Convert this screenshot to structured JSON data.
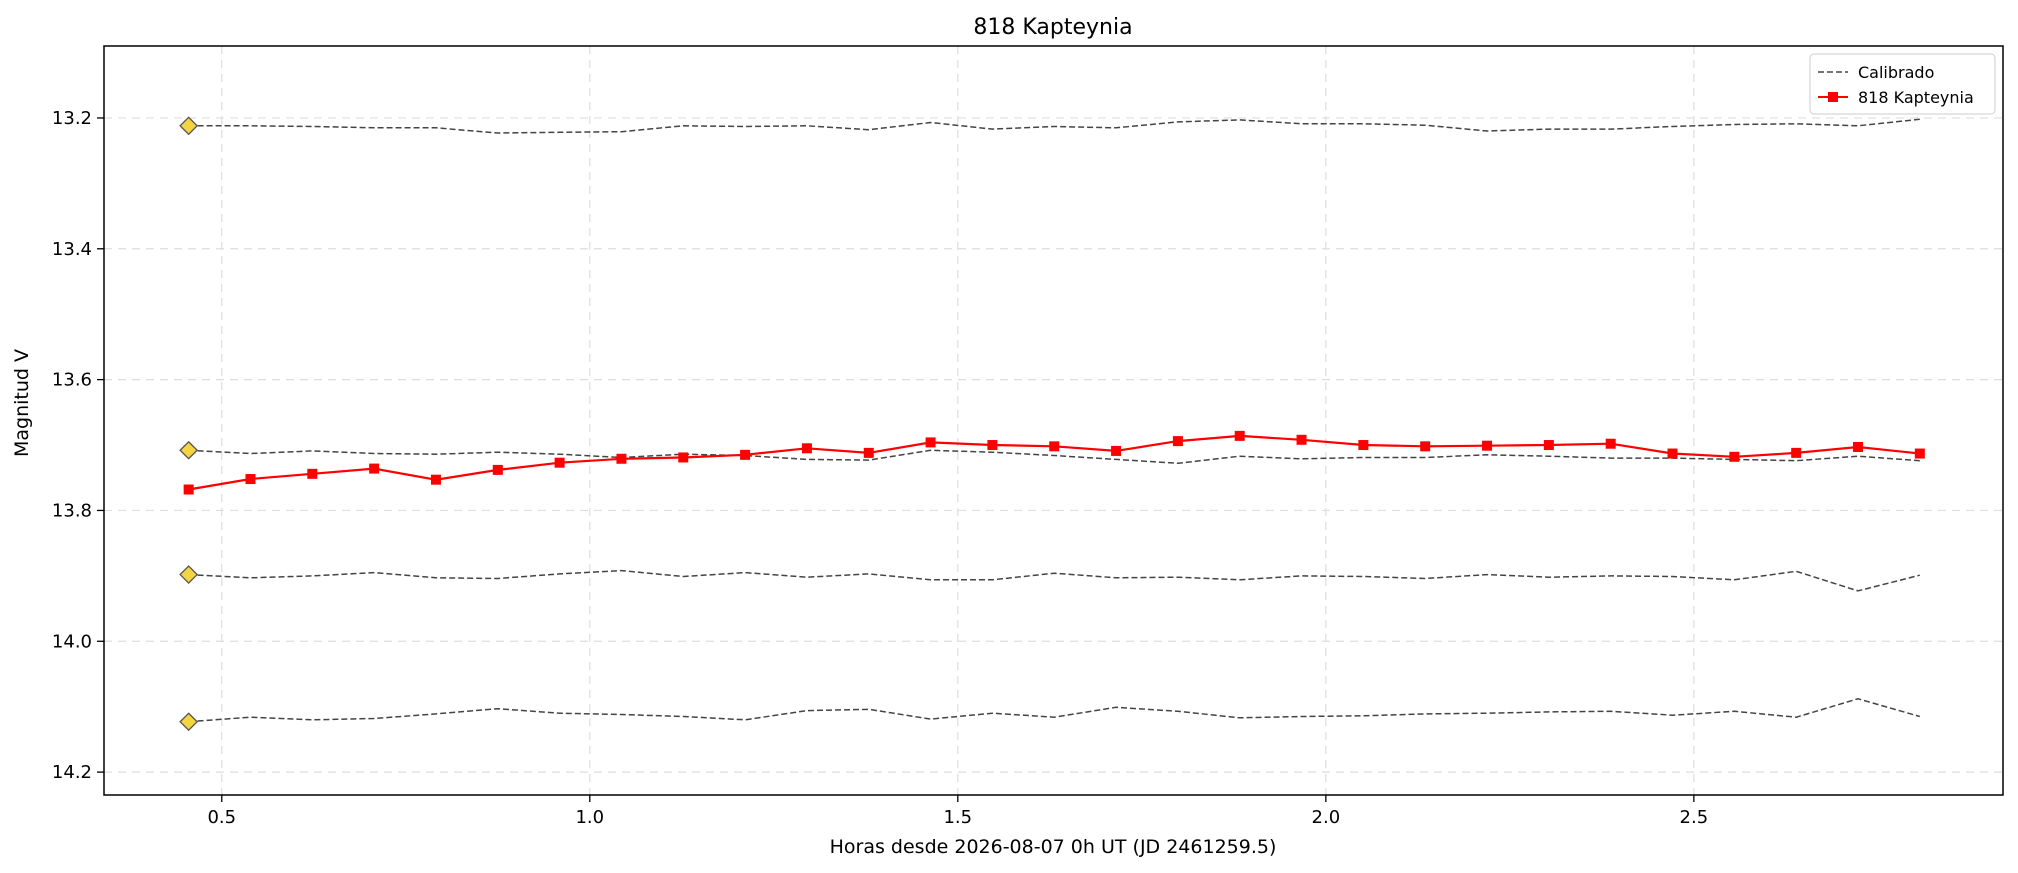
{
  "chart_data": {
    "type": "line",
    "title": "818 Kapteynia",
    "xlabel": "Horas desde 2026-08-07 0h UT (JD 2461259.5)",
    "ylabel": "Magnitud V",
    "xlim": [
      0.34,
      2.92
    ],
    "ylim": [
      14.235,
      13.09
    ],
    "y_inverted": true,
    "grid": true,
    "legend_position": "top-right",
    "x_ticks": [
      0.5,
      1.0,
      1.5,
      2.0,
      2.5
    ],
    "x_tick_labels": [
      "0.5",
      "1.0",
      "1.5",
      "2.0",
      "2.5"
    ],
    "y_ticks": [
      13.2,
      13.4,
      13.6,
      13.8,
      14.0,
      14.2
    ],
    "y_tick_labels": [
      "13.2",
      "13.4",
      "13.6",
      "13.8",
      "14.0",
      "14.2"
    ],
    "x": [
      0.455,
      0.539,
      0.623,
      0.707,
      0.791,
      0.875,
      0.959,
      1.043,
      1.127,
      1.211,
      1.295,
      1.379,
      1.463,
      1.547,
      1.631,
      1.715,
      1.799,
      1.883,
      1.967,
      2.051,
      2.135,
      2.219,
      2.303,
      2.387,
      2.471,
      2.555,
      2.639,
      2.723,
      2.807
    ],
    "series": [
      {
        "name": "Calibrado",
        "style": "dashed",
        "color": "#444444",
        "values": [
          13.212,
          13.212,
          13.213,
          13.215,
          13.215,
          13.223,
          13.222,
          13.221,
          13.212,
          13.213,
          13.212,
          13.218,
          13.207,
          13.217,
          13.213,
          13.215,
          13.206,
          13.203,
          13.209,
          13.209,
          13.211,
          13.22,
          13.217,
          13.217,
          13.213,
          13.21,
          13.209,
          13.212,
          13.202
        ]
      },
      {
        "name": "",
        "style": "dashed",
        "color": "#444444",
        "values": [
          13.708,
          13.713,
          13.709,
          13.713,
          13.714,
          13.711,
          13.714,
          13.719,
          13.714,
          13.716,
          13.722,
          13.723,
          13.708,
          13.711,
          13.716,
          13.722,
          13.728,
          13.717,
          13.721,
          13.719,
          13.719,
          13.715,
          13.717,
          13.72,
          13.72,
          13.722,
          13.724,
          13.717,
          13.724
        ]
      },
      {
        "name": "",
        "style": "dashed",
        "color": "#444444",
        "values": [
          13.898,
          13.903,
          13.9,
          13.895,
          13.903,
          13.904,
          13.897,
          13.892,
          13.901,
          13.895,
          13.902,
          13.897,
          13.906,
          13.906,
          13.896,
          13.903,
          13.902,
          13.906,
          13.9,
          13.901,
          13.904,
          13.898,
          13.902,
          13.9,
          13.901,
          13.906,
          13.893,
          13.923,
          13.899
        ]
      },
      {
        "name": "",
        "style": "dashed",
        "color": "#444444",
        "values": [
          14.123,
          14.116,
          14.12,
          14.118,
          14.111,
          14.103,
          14.11,
          14.112,
          14.115,
          14.12,
          14.106,
          14.104,
          14.119,
          14.11,
          14.116,
          14.101,
          14.107,
          14.117,
          14.115,
          14.114,
          14.111,
          14.11,
          14.108,
          14.107,
          14.113,
          14.107,
          14.116,
          14.088,
          14.115
        ]
      },
      {
        "name": "818 Kapteynia",
        "style": "solid-square",
        "color": "#ff0000",
        "values": [
          13.768,
          13.752,
          13.744,
          13.736,
          13.753,
          13.738,
          13.727,
          13.721,
          13.719,
          13.715,
          13.705,
          13.712,
          13.696,
          13.7,
          13.702,
          13.709,
          13.694,
          13.686,
          13.692,
          13.7,
          13.702,
          13.701,
          13.7,
          13.698,
          13.713,
          13.718,
          13.712,
          13.703,
          13.713
        ]
      }
    ],
    "reference_markers": {
      "color": "#f5d442",
      "x": 0.455,
      "values": [
        13.212,
        13.708,
        13.898,
        14.123
      ]
    },
    "legend": [
      "Calibrado",
      "818 Kapteynia"
    ]
  }
}
